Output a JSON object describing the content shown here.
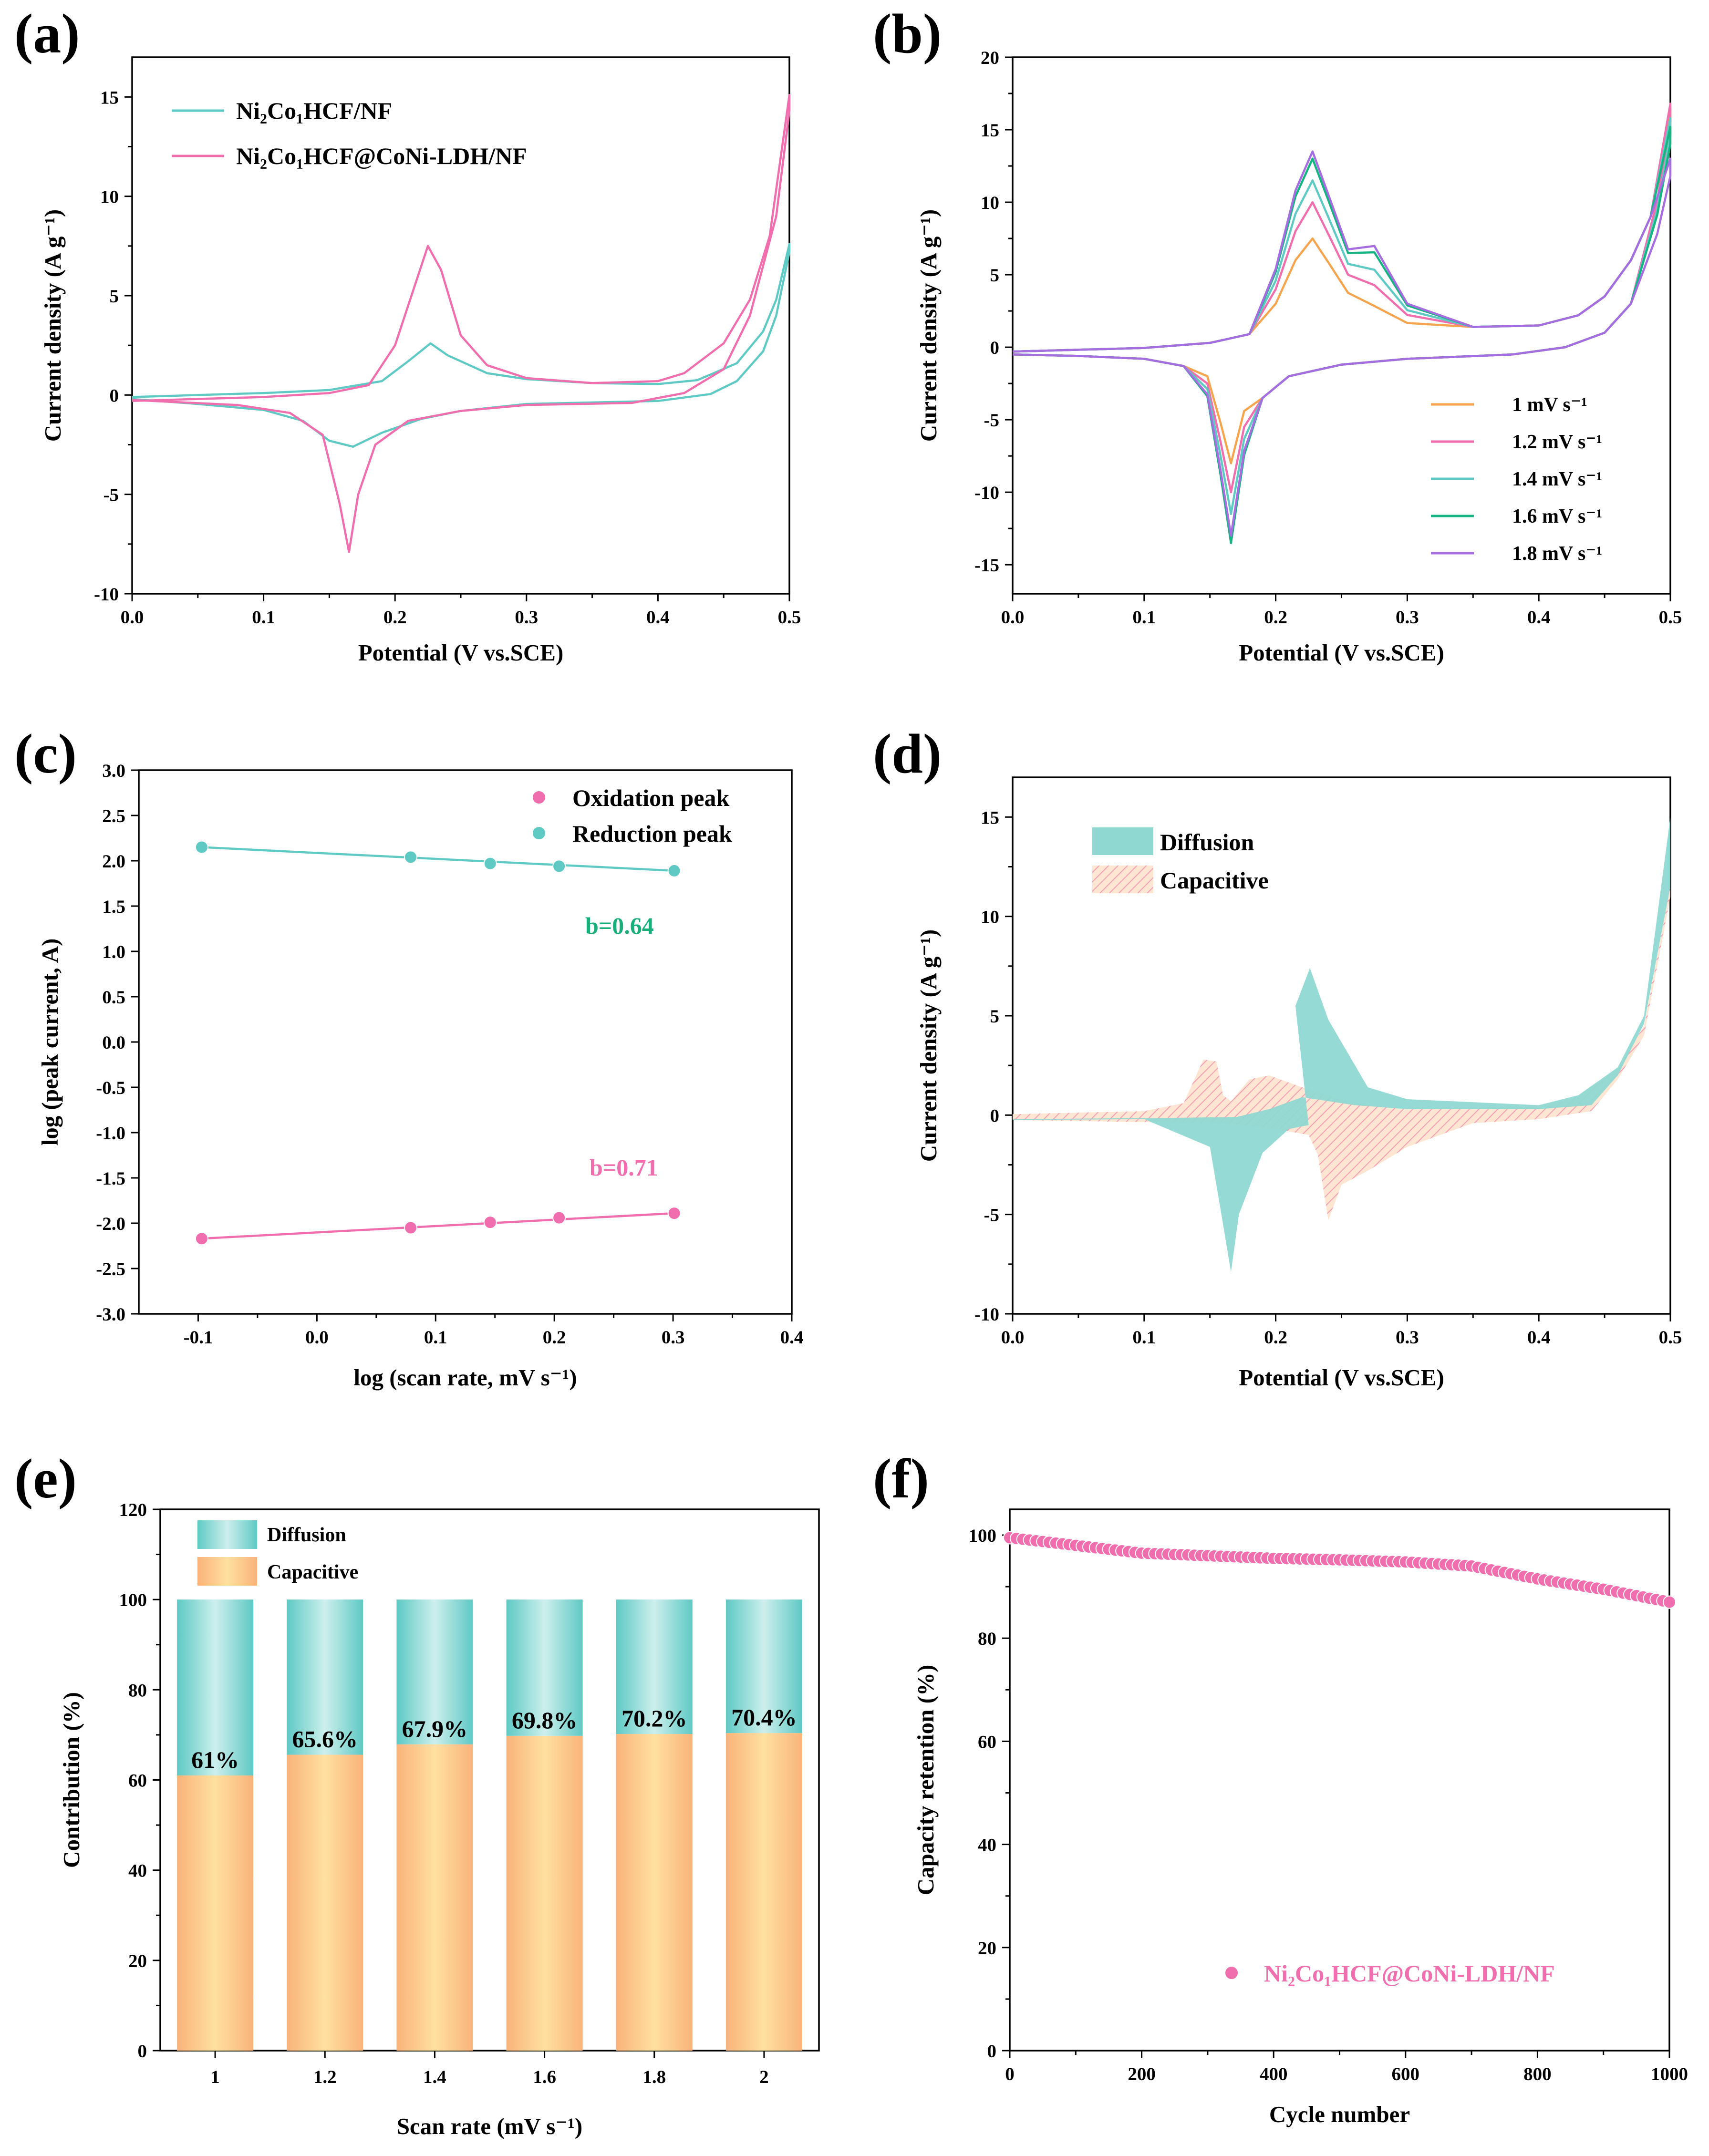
{
  "colors": {
    "teal": "#5FC9C4",
    "pink": "#F06EAE",
    "orange": "#F6A44E",
    "green": "#17B483",
    "purple": "#A56DE0",
    "annGreen": "#1AAE7A",
    "annPink": "#F06EAE"
  },
  "chart_data": [
    {
      "panel": "(a)",
      "type": "line",
      "xlabel": "Potential (V vs.SCE)",
      "ylabel": "Current density (A g⁻¹)",
      "xlim": [
        0,
        0.5
      ],
      "ylim": [
        -10,
        17
      ],
      "xticks": [
        "0.0",
        "0.1",
        "0.2",
        "0.3",
        "0.4",
        "0.5"
      ],
      "yticks": [
        "-10",
        "-5",
        "0",
        "5",
        "10",
        "15"
      ],
      "legend": {
        "position": "top-left",
        "items": [
          "Ni₂Co₁HCF/NF",
          "Ni₂Co₁HCF@CoNi-LDH/NF"
        ]
      },
      "series": [
        {
          "name": "Ni₂Co₁HCF/NF",
          "color": "teal",
          "anodic": [
            [
              0,
              -0.1
            ],
            [
              0.1,
              0.1
            ],
            [
              0.15,
              0.25
            ],
            [
              0.19,
              0.7
            ],
            [
              0.21,
              1.7
            ],
            [
              0.227,
              2.6
            ],
            [
              0.24,
              2.0
            ],
            [
              0.27,
              1.1
            ],
            [
              0.3,
              0.8
            ],
            [
              0.35,
              0.6
            ],
            [
              0.4,
              0.55
            ],
            [
              0.43,
              0.75
            ],
            [
              0.46,
              1.6
            ],
            [
              0.48,
              3.2
            ],
            [
              0.49,
              4.8
            ],
            [
              0.5,
              7.6
            ]
          ],
          "cathodic": [
            [
              0.5,
              7.2
            ],
            [
              0.49,
              4.0
            ],
            [
              0.48,
              2.2
            ],
            [
              0.46,
              0.7
            ],
            [
              0.44,
              0.05
            ],
            [
              0.4,
              -0.3
            ],
            [
              0.3,
              -0.45
            ],
            [
              0.25,
              -0.8
            ],
            [
              0.22,
              -1.2
            ],
            [
              0.19,
              -1.9
            ],
            [
              0.168,
              -2.6
            ],
            [
              0.15,
              -2.3
            ],
            [
              0.13,
              -1.3
            ],
            [
              0.1,
              -0.75
            ],
            [
              0.05,
              -0.45
            ],
            [
              0,
              -0.2
            ]
          ]
        },
        {
          "name": "Ni₂Co₁HCF@CoNi-LDH/NF",
          "color": "pink",
          "anodic": [
            [
              0,
              -0.3
            ],
            [
              0.1,
              -0.1
            ],
            [
              0.15,
              0.1
            ],
            [
              0.18,
              0.5
            ],
            [
              0.2,
              2.5
            ],
            [
              0.215,
              5.5
            ],
            [
              0.225,
              7.5
            ],
            [
              0.235,
              6.3
            ],
            [
              0.25,
              3.0
            ],
            [
              0.27,
              1.5
            ],
            [
              0.3,
              0.85
            ],
            [
              0.35,
              0.6
            ],
            [
              0.4,
              0.7
            ],
            [
              0.42,
              1.1
            ],
            [
              0.45,
              2.6
            ],
            [
              0.47,
              4.8
            ],
            [
              0.485,
              8.0
            ],
            [
              0.5,
              15.1
            ]
          ],
          "cathodic": [
            [
              0.5,
              14.3
            ],
            [
              0.49,
              9.0
            ],
            [
              0.47,
              4.0
            ],
            [
              0.45,
              1.3
            ],
            [
              0.42,
              0.1
            ],
            [
              0.38,
              -0.4
            ],
            [
              0.3,
              -0.5
            ],
            [
              0.25,
              -0.8
            ],
            [
              0.21,
              -1.3
            ],
            [
              0.185,
              -2.5
            ],
            [
              0.172,
              -5.0
            ],
            [
              0.165,
              -7.9
            ],
            [
              0.158,
              -5.5
            ],
            [
              0.145,
              -2.0
            ],
            [
              0.12,
              -0.9
            ],
            [
              0.08,
              -0.5
            ],
            [
              0,
              -0.25
            ]
          ]
        }
      ]
    },
    {
      "panel": "(b)",
      "type": "line",
      "xlabel": "Potential (V vs.SCE)",
      "ylabel": "Current density (A g⁻¹)",
      "xlim": [
        0,
        0.5
      ],
      "ylim": [
        -17,
        20
      ],
      "xticks": [
        "0.0",
        "0.1",
        "0.2",
        "0.3",
        "0.4",
        "0.5"
      ],
      "yticks": [
        "-15",
        "-10",
        "-5",
        "0",
        "5",
        "10",
        "15",
        "20"
      ],
      "legend": {
        "position": "bottom-right",
        "items": [
          "1 mV s⁻¹",
          "1.2 mV s⁻¹",
          "1.4 mV s⁻¹",
          "1.6 mV s⁻¹",
          "1.8 mV s⁻¹"
        ]
      },
      "series": [
        {
          "name": "1 mV s⁻¹",
          "color": "orange",
          "peak_ox": 7.5,
          "peak_red": -8.0,
          "end": 16.5
        },
        {
          "name": "1.2 mV s⁻¹",
          "color": "pink",
          "peak_ox": 10.0,
          "peak_red": -10.0,
          "end": 16.8
        },
        {
          "name": "1.4 mV s⁻¹",
          "color": "teal",
          "peak_ox": 11.5,
          "peak_red": -11.5,
          "end": 15.8
        },
        {
          "name": "1.6 mV s⁻¹",
          "color": "green",
          "peak_ox": 13.0,
          "peak_red": -13.5,
          "end": 15.2
        },
        {
          "name": "1.8 mV s⁻¹",
          "color": "purple",
          "peak_ox": 13.5,
          "peak_red": -13.0,
          "end": 13.0
        }
      ]
    },
    {
      "panel": "(c)",
      "type": "scatter",
      "xlabel": "log (scan rate, mV s⁻¹)",
      "ylabel": "log (peak current, A)",
      "xlim": [
        -0.15,
        0.4
      ],
      "ylim": [
        -3,
        3
      ],
      "xticks": [
        "-0.1",
        "0.0",
        "0.1",
        "0.2",
        "0.3",
        "0.4"
      ],
      "yticks": [
        "-3.0",
        "-2.5",
        "-2.0",
        "-1.5",
        "-1.0",
        "-0.5",
        "0.0",
        "0.5",
        "1.0",
        "1.5",
        "2.0",
        "2.5",
        "3.0"
      ],
      "legend": {
        "position": "top-right",
        "items": [
          "Oxidation peak",
          "Reduction peak"
        ]
      },
      "annotations": [
        "b=0.64",
        "b=0.71"
      ],
      "series": [
        {
          "name": "Oxidation peak",
          "color": "pink",
          "x": [
            -0.097,
            0.079,
            0.146,
            0.204,
            0.301
          ],
          "y": [
            -2.17,
            -2.05,
            -1.99,
            -1.94,
            -1.89
          ]
        },
        {
          "name": "Reduction peak",
          "color": "teal",
          "x": [
            -0.097,
            0.079,
            0.146,
            0.204,
            0.301
          ],
          "y": [
            2.15,
            2.04,
            1.97,
            1.94,
            1.89
          ]
        }
      ]
    },
    {
      "panel": "(d)",
      "type": "area",
      "xlabel": "Potential (V vs.SCE)",
      "ylabel": "Current density (A g⁻¹)",
      "xlim": [
        0,
        0.5
      ],
      "ylim": [
        -10,
        17
      ],
      "xticks": [
        "0.0",
        "0.1",
        "0.2",
        "0.3",
        "0.4",
        "0.5"
      ],
      "yticks": [
        "-10",
        "-5",
        "0",
        "5",
        "10",
        "15"
      ],
      "legend": {
        "position": "top-left",
        "items": [
          "Diffusion",
          "Capacitive"
        ]
      }
    },
    {
      "panel": "(e)",
      "type": "bar",
      "xlabel": "Scan rate (mV s⁻¹)",
      "ylabel": "Contribution (%)",
      "ylim": [
        0,
        120
      ],
      "yticks": [
        "0",
        "20",
        "40",
        "60",
        "80",
        "100",
        "120"
      ],
      "categories": [
        "1",
        "1.2",
        "1.4",
        "1.6",
        "1.8",
        "2"
      ],
      "legend": {
        "position": "top-left",
        "items": [
          "Diffusion",
          "Capacitive"
        ]
      },
      "series": [
        {
          "name": "Capacitive",
          "values": [
            61,
            65.6,
            67.9,
            69.8,
            70.2,
            70.4
          ]
        },
        {
          "name": "Diffusion",
          "values": [
            39,
            34.4,
            32.1,
            30.2,
            29.8,
            29.6
          ]
        }
      ],
      "labels": [
        "61%",
        "65.6%",
        "67.9%",
        "69.8%",
        "70.2%",
        "70.4%"
      ]
    },
    {
      "panel": "(f)",
      "type": "scatter",
      "xlabel": "Cycle number",
      "ylabel": "Capacity retention (%)",
      "xlim": [
        0,
        1000
      ],
      "ylim": [
        0,
        105
      ],
      "xticks": [
        "0",
        "200",
        "400",
        "600",
        "800",
        "1000"
      ],
      "yticks": [
        "0",
        "20",
        "40",
        "60",
        "80",
        "100"
      ],
      "legend": {
        "position": "bottom-right",
        "items": [
          "Ni₂Co₁HCF@CoNi-LDH/NF"
        ]
      },
      "series": [
        {
          "name": "Ni₂Co₁HCF@CoNi-LDH/NF",
          "color": "pink",
          "x": [
            0,
            100,
            200,
            300,
            400,
            500,
            600,
            700,
            800,
            900,
            1000
          ],
          "y": [
            99.5,
            98,
            96.5,
            96,
            95.5,
            95.2,
            94.8,
            94,
            91.5,
            89.5,
            87
          ]
        }
      ]
    }
  ]
}
